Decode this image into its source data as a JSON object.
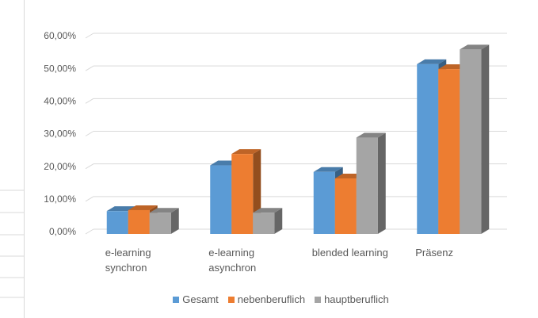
{
  "chart_data": {
    "type": "bar3d",
    "categories": [
      "e-learning\nsynchron",
      "e-learning\nasynchron",
      "blended learning",
      "Präsenz"
    ],
    "series": [
      {
        "name": "Gesamt",
        "color": "#5b9bd5",
        "values": [
          7,
          21,
          19,
          52
        ]
      },
      {
        "name": "nebenberuflich",
        "color": "#ed7d31",
        "values": [
          7.3,
          24.5,
          17,
          50.5
        ]
      },
      {
        "name": "hauptberuflich",
        "color": "#a5a5a5",
        "values": [
          6.5,
          6.5,
          29.5,
          56.5
        ]
      }
    ],
    "ylim": [
      0,
      60
    ],
    "yticks": [
      {
        "value": 0,
        "label": "0,00%"
      },
      {
        "value": 10,
        "label": "10,00%"
      },
      {
        "value": 20,
        "label": "20,00%"
      },
      {
        "value": 30,
        "label": "30,00%"
      },
      {
        "value": 40,
        "label": "40,00%"
      },
      {
        "value": 50,
        "label": "50,00%"
      },
      {
        "value": 60,
        "label": "60,00%"
      }
    ],
    "grid": true,
    "legend": "bottom"
  }
}
